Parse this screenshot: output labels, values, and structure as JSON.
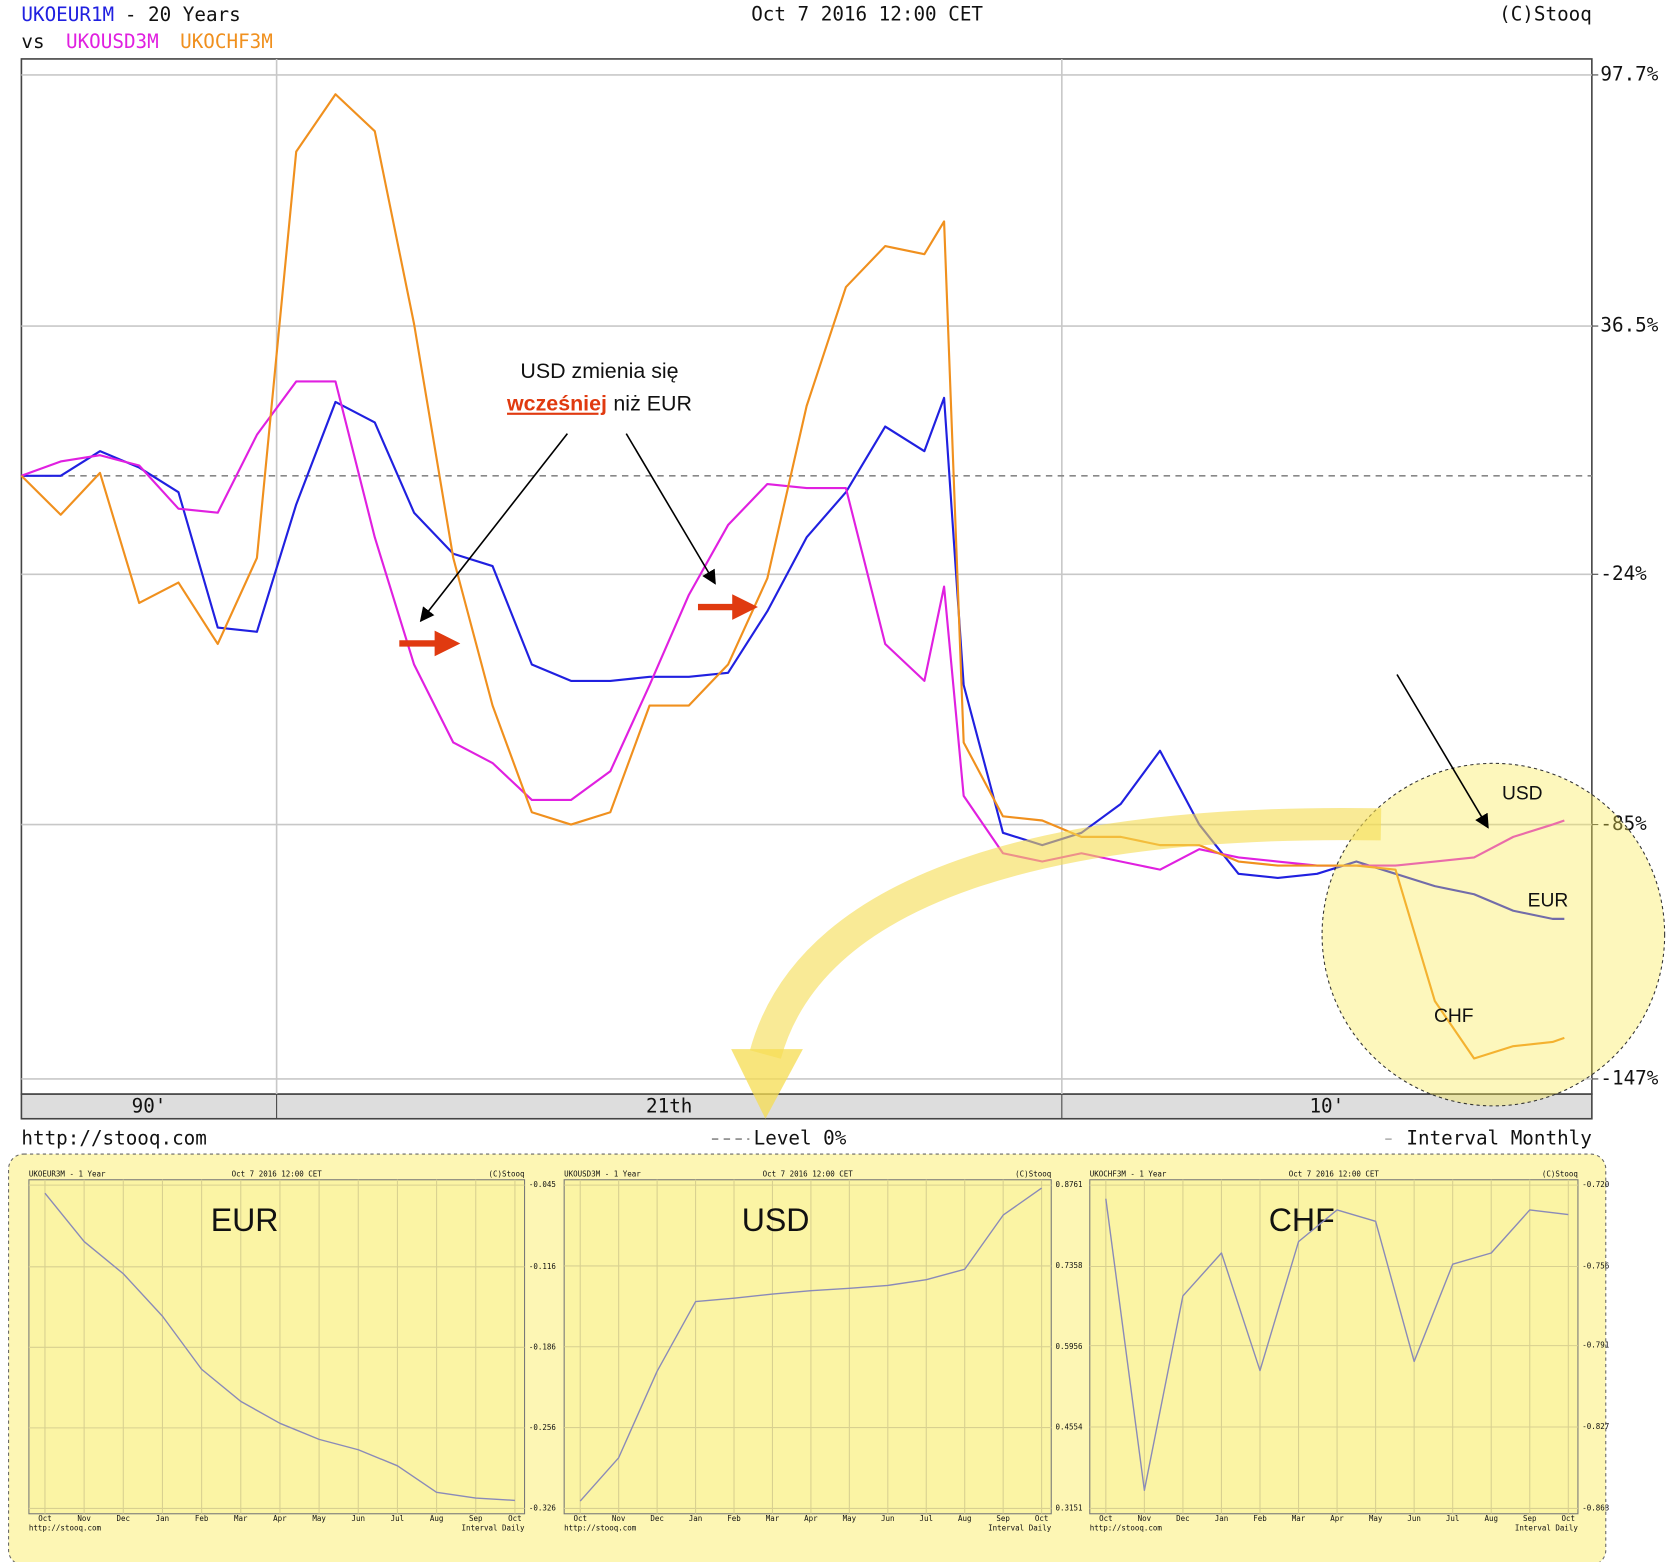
{
  "chart_data": [
    {
      "type": "line",
      "title": "- 20 Years",
      "date": "Oct 7 2016 12:00 CET",
      "source": "(C)Stooq",
      "vs_label": "vs",
      "x": [
        1996.75,
        1997.25,
        1997.75,
        1998.25,
        1998.75,
        1999.25,
        1999.75,
        2000.25,
        2000.75,
        2001.25,
        2001.75,
        2002.25,
        2002.75,
        2003.25,
        2003.75,
        2004.25,
        2004.75,
        2005.25,
        2005.75,
        2006.25,
        2006.75,
        2007.25,
        2007.75,
        2008.25,
        2008.5,
        2008.75,
        2009.25,
        2009.75,
        2010.25,
        2010.75,
        2011.25,
        2011.75,
        2012.25,
        2012.75,
        2013.25,
        2013.75,
        2014.25,
        2014.75,
        2015.25,
        2015.75,
        2016.25,
        2016.4
      ],
      "xlim": [
        1996.75,
        2016.75
      ],
      "decades": [
        {
          "label": "90'",
          "range": [
            1996.75,
            2000
          ]
        },
        {
          "label": "21th",
          "range": [
            2000,
            2010
          ]
        },
        {
          "label": "10'",
          "range": [
            2010,
            2016.75
          ]
        }
      ],
      "ylim": [
        -150.7,
        101.6
      ],
      "yticks": [
        {
          "value": 97.7,
          "label": "97.7%"
        },
        {
          "value": 36.5,
          "label": "36.5%"
        },
        {
          "value": -24,
          "label": "-24%"
        },
        {
          "value": -85,
          "label": "-85%"
        },
        {
          "value": -147,
          "label": "-147%"
        }
      ],
      "grid": true,
      "reference_line": {
        "value": 0,
        "label": "Level 0%"
      },
      "footer_left": "http://stooq.com",
      "footer_right": "Interval Monthly",
      "series": [
        {
          "name": "UKOEUR1M",
          "color": "#2020e0",
          "values": [
            0,
            0,
            6,
            2,
            -4,
            -37,
            -38,
            -7,
            18,
            13,
            -9,
            -19,
            -22,
            -46,
            -50,
            -50,
            -49,
            -49,
            -48,
            -33,
            -15,
            -4,
            12,
            6,
            19,
            -51,
            -87,
            -90,
            -87,
            -80,
            -67,
            -85,
            -97,
            -98,
            -97,
            -94,
            -97,
            -100,
            -102,
            -106,
            -108,
            -108
          ]
        },
        {
          "name": "UKOUSD3M",
          "color": "#e020e0",
          "values": [
            0,
            3.5,
            5,
            2.5,
            -8,
            -9,
            10,
            23,
            23,
            -15,
            -46,
            -65,
            -70,
            -79,
            -79,
            -72,
            -51,
            -29,
            -12,
            -2,
            -3,
            -3,
            -41,
            -50,
            -27,
            -78,
            -92,
            -94,
            -92,
            -94,
            -96,
            -91,
            -93,
            -94,
            -95,
            -95,
            -95,
            -94,
            -93,
            -88,
            -85,
            -84
          ]
        },
        {
          "name": "UKOCHF3M",
          "color": "#f0901e",
          "values": [
            0,
            -9.5,
            0.7,
            -31,
            -26,
            -41,
            -20,
            79,
            93,
            84,
            37,
            -20,
            -56,
            -82,
            -85,
            -82,
            -56,
            -56,
            -46,
            -25,
            17,
            46,
            56,
            54,
            62,
            -65,
            -83,
            -84,
            -88,
            -88,
            -90,
            -90,
            -94,
            -95,
            -95,
            -95,
            -96,
            -128,
            -142,
            -139,
            -138,
            -137
          ]
        }
      ],
      "note": {
        "line1": "USD zmienia się",
        "emphasis": "wcześniej",
        "rest": "niż EUR"
      },
      "end_labels": [
        "USD",
        "EUR",
        "CHF"
      ]
    },
    {
      "type": "line",
      "title": "UKOEUR3M - 1 Year",
      "date": "Oct 7 2016 12:00 CET",
      "source": "(C)Stooq",
      "label": "EUR",
      "categories": [
        "Oct",
        "Nov",
        "Dec",
        "Jan",
        "Feb",
        "Mar",
        "Apr",
        "May",
        "Jun",
        "Jul",
        "Aug",
        "Sep",
        "Oct"
      ],
      "values": [
        -0.052,
        -0.094,
        -0.122,
        -0.159,
        -0.205,
        -0.233,
        -0.252,
        -0.266,
        -0.275,
        -0.289,
        -0.312,
        -0.317,
        -0.319
      ],
      "color": "#8a8ab8",
      "ylim": [
        -0.326,
        -0.045
      ],
      "yticks": [
        -0.045,
        -0.116,
        -0.186,
        -0.256,
        -0.326
      ],
      "footer_left": "http://stooq.com",
      "footer_right": "Interval Daily"
    },
    {
      "type": "line",
      "title": "UKOUSD3M - 1 Year",
      "date": "Oct 7 2016 12:00 CET",
      "source": "(C)Stooq",
      "label": "USD",
      "categories": [
        "Oct",
        "Nov",
        "Dec",
        "Jan",
        "Feb",
        "Mar",
        "Apr",
        "May",
        "Jun",
        "Jul",
        "Aug",
        "Sep",
        "Oct"
      ],
      "values": [
        0.328,
        0.403,
        0.553,
        0.674,
        0.68,
        0.687,
        0.693,
        0.697,
        0.702,
        0.712,
        0.73,
        0.824,
        0.871
      ],
      "color": "#8a8ab8",
      "ylim": [
        0.3151,
        0.8761
      ],
      "yticks": [
        0.8761,
        0.7358,
        0.5956,
        0.4554,
        0.3151
      ],
      "footer_left": "http://stooq.com",
      "footer_right": "Interval Daily"
    },
    {
      "type": "line",
      "title": "UKOCHF3M - 1 Year",
      "date": "Oct 7 2016 12:00 CET",
      "source": "(C)Stooq",
      "label": "CHF",
      "categories": [
        "Oct",
        "Nov",
        "Dec",
        "Jan",
        "Feb",
        "Mar",
        "Apr",
        "May",
        "Jun",
        "Jul",
        "Aug",
        "Sep",
        "Oct"
      ],
      "values": [
        -0.726,
        -0.855,
        -0.769,
        -0.75,
        -0.802,
        -0.745,
        -0.731,
        -0.736,
        -0.798,
        -0.755,
        -0.75,
        -0.731,
        -0.733
      ],
      "color": "#8a8ab8",
      "ylim": [
        -0.863,
        -0.72
      ],
      "yticks": [
        {
          "value": -0.72,
          "label": "-0.720"
        },
        -0.756,
        -0.791,
        -0.827,
        -0.863
      ],
      "footer_left": "http://stooq.com",
      "footer_right": "Interval Daily"
    }
  ]
}
